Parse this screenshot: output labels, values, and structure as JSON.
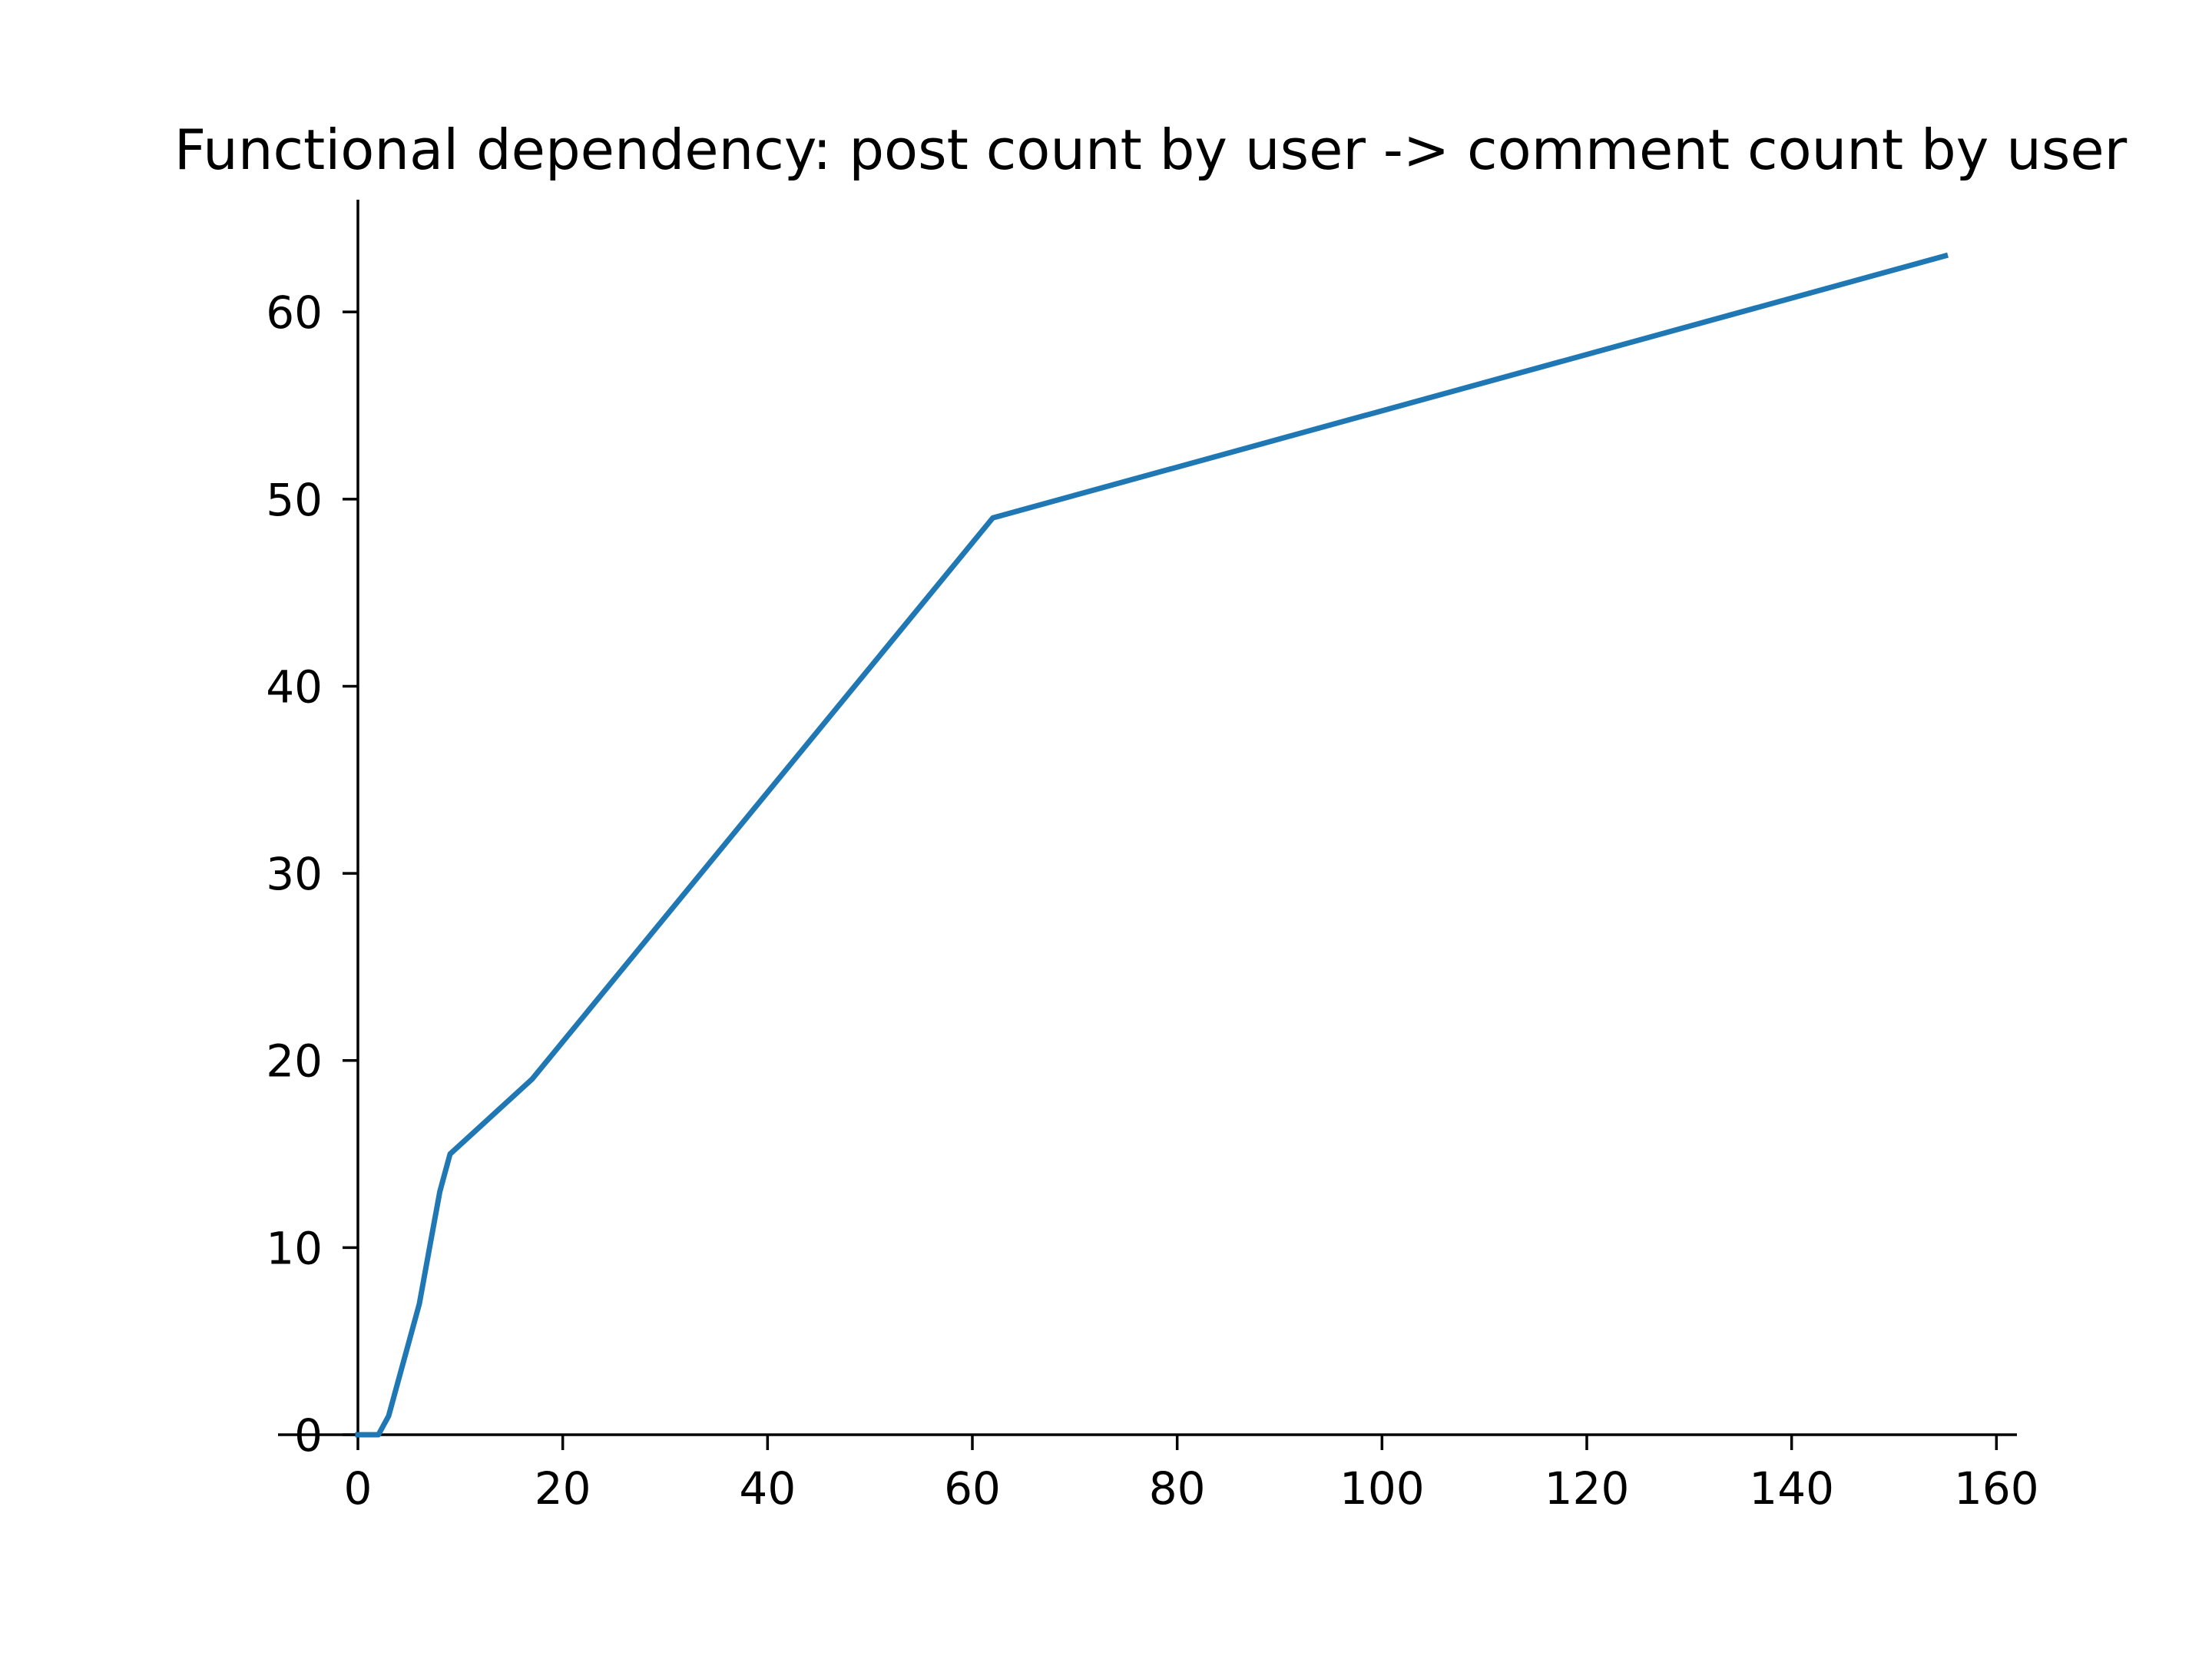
{
  "chart_data": {
    "type": "line",
    "title": "Functional dependency: post count by user -> comment count by user",
    "xlabel": "",
    "ylabel": "",
    "xlim": [
      0,
      162
    ],
    "ylim": [
      0,
      66
    ],
    "x_ticks": [
      0,
      20,
      40,
      60,
      80,
      100,
      120,
      140,
      160
    ],
    "y_ticks": [
      0,
      10,
      20,
      30,
      40,
      50,
      60
    ],
    "grid": false,
    "legend": "none",
    "series": [
      {
        "color": "#1f77b4",
        "x": [
          0,
          1,
          2,
          3,
          4,
          5,
          6,
          7,
          8,
          9,
          17,
          62,
          155
        ],
        "y": [
          0,
          0,
          0,
          1,
          3,
          5,
          7,
          10,
          13,
          15,
          19,
          49,
          63
        ]
      }
    ]
  }
}
